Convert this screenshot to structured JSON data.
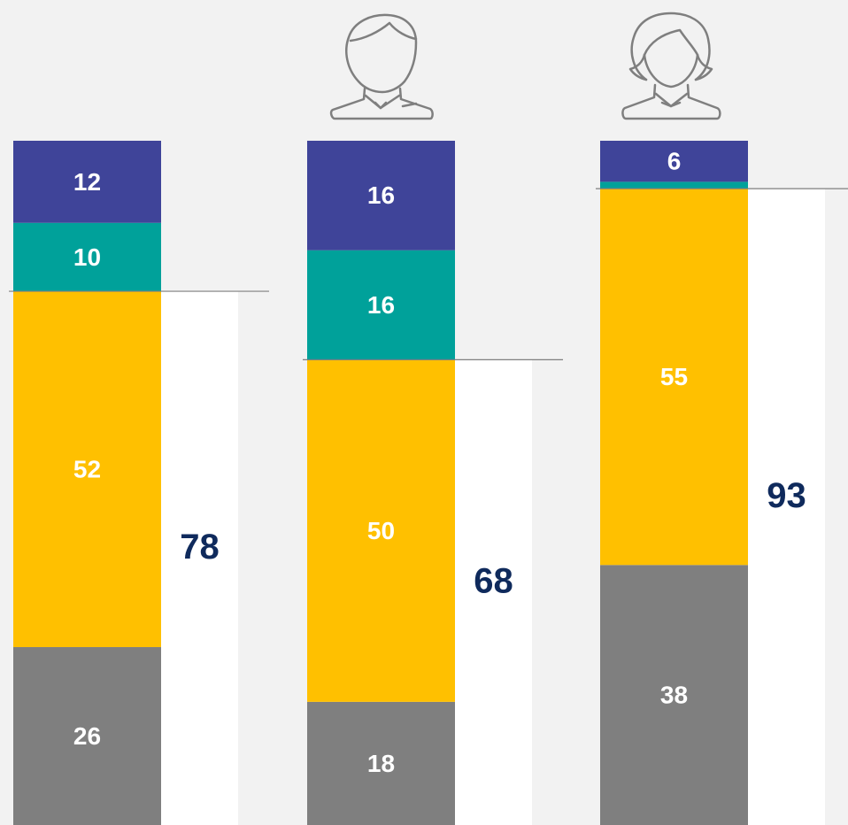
{
  "chart_data": {
    "type": "stacked-bar",
    "categories": [
      null,
      null,
      null
    ],
    "ylim": [
      0,
      100
    ],
    "series": [
      {
        "color": "#7f7f7f",
        "values": [
          26,
          18,
          38
        ]
      },
      {
        "color": "#ffc000",
        "values": [
          52,
          50,
          55
        ]
      },
      {
        "color": "#00a19a",
        "values": [
          10,
          16,
          1
        ],
        "value_labels": [
          "10",
          "16",
          null
        ]
      },
      {
        "color": "#3f4499",
        "values": [
          12,
          16,
          6
        ]
      }
    ],
    "totals": {
      "color": "#ffffff",
      "label_color": "#0f2a5c",
      "values": [
        78,
        68,
        93
      ]
    }
  }
}
